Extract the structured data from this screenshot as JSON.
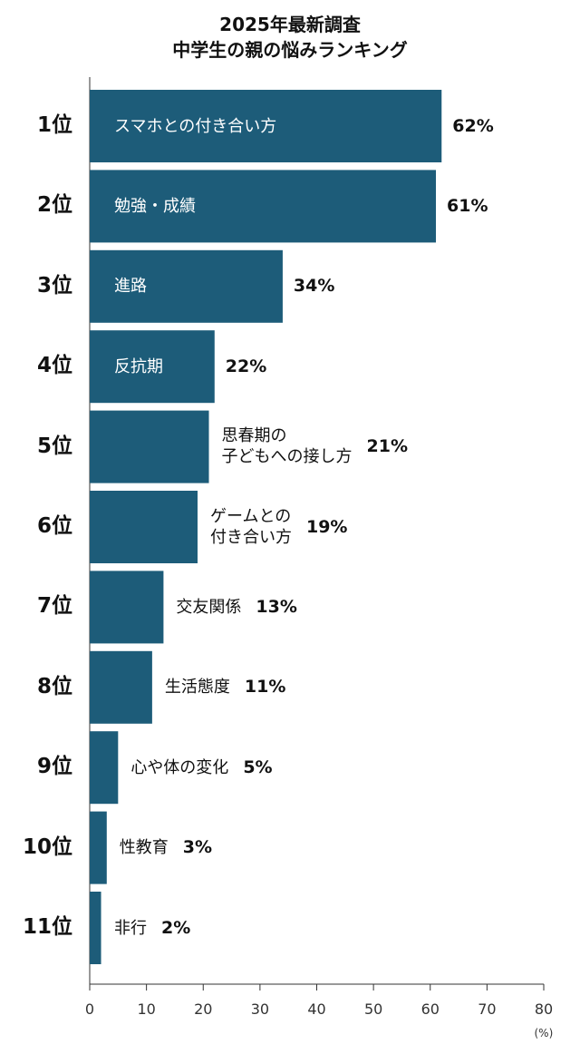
{
  "chart_data": {
    "type": "bar",
    "orientation": "horizontal",
    "title": [
      "2025年最新調査",
      "中学生の親の悩みランキング"
    ],
    "ranks": [
      "1位",
      "2位",
      "3位",
      "4位",
      "5位",
      "6位",
      "7位",
      "8位",
      "9位",
      "10位",
      "11位"
    ],
    "categories": [
      "スマホとの付き合い方",
      "勉強・成績",
      "進路",
      "反抗期",
      "思春期の\n子どもへの接し方",
      "ゲームとの\n付き合い方",
      "交友関係",
      "生活態度",
      "心や体の変化",
      "性教育",
      "非行"
    ],
    "values": [
      62,
      61,
      34,
      22,
      21,
      19,
      13,
      11,
      5,
      3,
      2
    ],
    "value_labels": [
      "62%",
      "61%",
      "34%",
      "22%",
      "21%",
      "19%",
      "13%",
      "11%",
      "5%",
      "3%",
      "2%"
    ],
    "color": "#1d5c79",
    "xlim": [
      0,
      80
    ],
    "xticks": [
      0,
      10,
      20,
      30,
      40,
      50,
      60,
      70,
      80
    ],
    "x_unit": "(%)"
  }
}
